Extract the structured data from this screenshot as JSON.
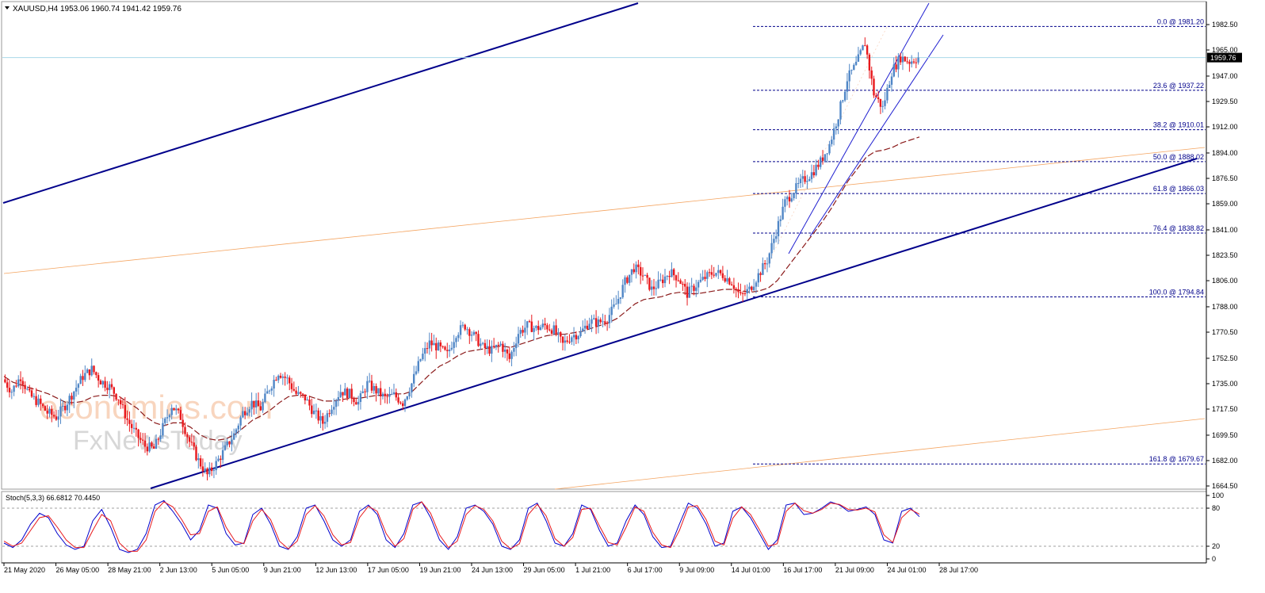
{
  "header": {
    "symbol": "XAUUSD,H4",
    "ohlc": "1953.06 1960.74 1941.42 1959.76"
  },
  "watermark": {
    "line1": "economies.com",
    "line2": "FxNewsToday"
  },
  "colors": {
    "bull": "#4f86c6",
    "bear": "#e8181c",
    "ma": "#8b1a1a",
    "trend": "#00008b",
    "fib": "#00008b",
    "fan": "#f4a460",
    "stoch_main": "#0000cc",
    "stoch_signal": "#e8181c",
    "current_line": "#a8d8ea"
  },
  "chart_data": [
    {
      "type": "line",
      "subtype": "candlestick",
      "title": "XAUUSD,H4",
      "ylim": [
        1664.5,
        1990.0
      ],
      "price_ticks": [
        "1982.50",
        "1965.00",
        "1947.00",
        "1929.50",
        "1912.00",
        "1894.00",
        "1876.50",
        "1859.00",
        "1841.00",
        "1823.50",
        "1806.00",
        "1788.00",
        "1770.50",
        "1752.50",
        "1735.00",
        "1717.50",
        "1699.50",
        "1682.00",
        "1664.50"
      ],
      "current_price": "1959.76",
      "x_ticks": [
        "21 May 2020",
        "26 May 05:00",
        "28 May 21:00",
        "2 Jun 13:00",
        "5 Jun 05:00",
        "9 Jun 21:00",
        "12 Jun 13:00",
        "17 Jun 05:00",
        "19 Jun 21:00",
        "24 Jun 13:00",
        "29 Jun 05:00",
        "1 Jul 21:00",
        "6 Jul 17:00",
        "9 Jul 09:00",
        "14 Jul 01:00",
        "16 Jul 17:00",
        "21 Jul 09:00",
        "24 Jul 01:00",
        "28 Jul 17:00"
      ],
      "price_path": [
        1738,
        1730,
        1740,
        1727,
        1722,
        1715,
        1712,
        1720,
        1730,
        1740,
        1745,
        1737,
        1733,
        1725,
        1710,
        1700,
        1692,
        1690,
        1705,
        1720,
        1712,
        1695,
        1682,
        1672,
        1680,
        1690,
        1700,
        1715,
        1722,
        1718,
        1732,
        1743,
        1738,
        1728,
        1725,
        1715,
        1708,
        1720,
        1730,
        1728,
        1722,
        1735,
        1730,
        1725,
        1727,
        1722,
        1735,
        1752,
        1763,
        1760,
        1755,
        1770,
        1775,
        1768,
        1760,
        1758,
        1762,
        1752,
        1770,
        1775,
        1773,
        1775,
        1772,
        1762,
        1768,
        1770,
        1778,
        1777,
        1780,
        1790,
        1805,
        1815,
        1810,
        1800,
        1805,
        1812,
        1808,
        1797,
        1803,
        1808,
        1812,
        1810,
        1805,
        1795,
        1800,
        1810,
        1820,
        1840,
        1860,
        1868,
        1875,
        1880,
        1888,
        1900,
        1920,
        1945,
        1955,
        1970,
        1935,
        1925,
        1950,
        1960,
        1957,
        1959.76
      ],
      "ma_path": [
        1740,
        1736,
        1734,
        1732,
        1730,
        1728,
        1725,
        1722,
        1722,
        1723,
        1726,
        1727,
        1727,
        1726,
        1722,
        1718,
        1712,
        1708,
        1706,
        1708,
        1708,
        1705,
        1700,
        1697,
        1696,
        1697,
        1700,
        1705,
        1710,
        1713,
        1717,
        1722,
        1726,
        1727,
        1727,
        1725,
        1723,
        1723,
        1724,
        1725,
        1725,
        1726,
        1727,
        1727,
        1728,
        1728,
        1730,
        1736,
        1742,
        1747,
        1750,
        1754,
        1757,
        1758,
        1759,
        1760,
        1761,
        1760,
        1762,
        1764,
        1766,
        1768,
        1769,
        1769,
        1770,
        1771,
        1773,
        1775,
        1777,
        1780,
        1785,
        1790,
        1793,
        1794,
        1795,
        1797,
        1798,
        1797,
        1797,
        1798,
        1799,
        1800,
        1800,
        1799,
        1798,
        1799,
        1801,
        1806,
        1814,
        1822,
        1830,
        1838,
        1846,
        1855,
        1865,
        1875,
        1883,
        1891,
        1895,
        1896,
        1898,
        1901,
        1903,
        1905
      ],
      "fibonacci": [
        {
          "label": "0.0 @ 1981.20",
          "price": 1981.2
        },
        {
          "label": "23.6 @ 1937.22",
          "price": 1937.22
        },
        {
          "label": "38.2 @ 1910.01",
          "price": 1910.01
        },
        {
          "label": "50.0 @ 1888.02",
          "price": 1888.02
        },
        {
          "label": "61.8 @ 1866.03",
          "price": 1866.03
        },
        {
          "label": "76.4 @ 1838.82",
          "price": 1838.82
        },
        {
          "label": "100.0 @ 1794.84",
          "price": 1794.84
        },
        {
          "label": "161.8 @ 1679.67",
          "price": 1679.67
        }
      ]
    },
    {
      "type": "line",
      "title": "Stoch(5,3,3) 66.6812 70.4450",
      "ylim": [
        0,
        100
      ],
      "y_ticks": [
        "100",
        "80",
        "20",
        "0"
      ],
      "levels": [
        80,
        20
      ],
      "series": [
        {
          "values": [
            25,
            18,
            30,
            55,
            72,
            65,
            40,
            22,
            15,
            20,
            60,
            78,
            50,
            15,
            10,
            15,
            40,
            85,
            92,
            75,
            55,
            30,
            45,
            85,
            80,
            40,
            22,
            25,
            70,
            80,
            55,
            20,
            15,
            35,
            80,
            85,
            60,
            30,
            20,
            30,
            75,
            85,
            70,
            30,
            18,
            40,
            85,
            90,
            65,
            30,
            15,
            35,
            80,
            85,
            75,
            55,
            20,
            15,
            30,
            80,
            88,
            60,
            25,
            20,
            40,
            85,
            78,
            45,
            20,
            25,
            60,
            85,
            70,
            35,
            18,
            20,
            55,
            88,
            80,
            55,
            20,
            25,
            75,
            82,
            65,
            40,
            15,
            30,
            85,
            88,
            70,
            72,
            80,
            90,
            85,
            75,
            78,
            82,
            70,
            30,
            25,
            75,
            80,
            66.68
          ]
        },
        {
          "values": [
            28,
            20,
            25,
            45,
            65,
            68,
            50,
            30,
            18,
            18,
            45,
            70,
            60,
            25,
            12,
            12,
            30,
            75,
            90,
            82,
            62,
            38,
            40,
            75,
            82,
            50,
            28,
            24,
            60,
            78,
            62,
            28,
            16,
            28,
            70,
            84,
            68,
            38,
            22,
            26,
            65,
            83,
            75,
            40,
            20,
            32,
            78,
            90,
            72,
            38,
            18,
            28,
            70,
            84,
            78,
            60,
            28,
            16,
            24,
            70,
            86,
            68,
            32,
            20,
            34,
            78,
            80,
            52,
            26,
            22,
            50,
            82,
            75,
            42,
            22,
            18,
            45,
            82,
            84,
            62,
            28,
            22,
            64,
            82,
            70,
            46,
            20,
            24,
            75,
            88,
            76,
            72,
            78,
            88,
            86,
            78,
            77,
            80,
            74,
            38,
            26,
            65,
            78,
            70.45
          ]
        }
      ]
    }
  ]
}
